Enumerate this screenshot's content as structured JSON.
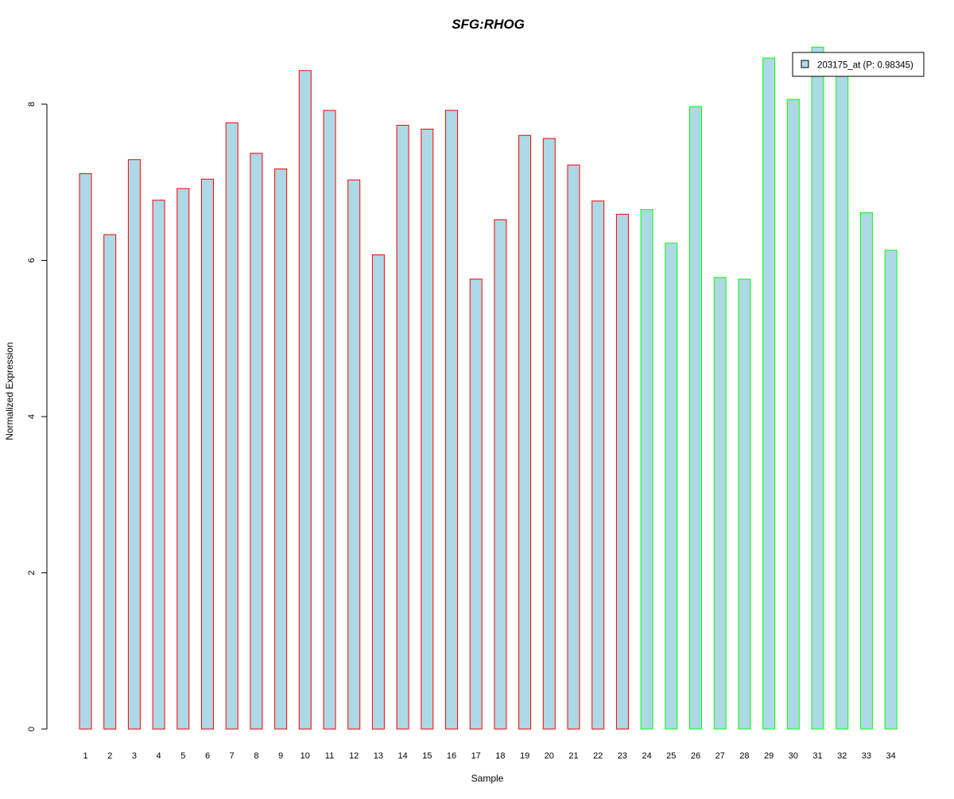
{
  "colors": {
    "bar_fill": "#add8e6",
    "group1_border": "#ff0000",
    "group2_border": "#00ff00",
    "title": "#0000cd",
    "axis": "#000000"
  },
  "chart_data": {
    "type": "bar",
    "title": "SFG:RHOG",
    "xlabel": "Sample",
    "ylabel": "Normalized Expression",
    "ylim": [
      0,
      8.75
    ],
    "yticks": [
      0,
      2,
      4,
      6,
      8
    ],
    "grid": false,
    "legend_position": "top-right",
    "categories": [
      "1",
      "2",
      "3",
      "4",
      "5",
      "6",
      "7",
      "8",
      "9",
      "10",
      "11",
      "12",
      "13",
      "14",
      "15",
      "16",
      "17",
      "18",
      "19",
      "20",
      "21",
      "22",
      "23",
      "24",
      "25",
      "26",
      "27",
      "28",
      "29",
      "30",
      "31",
      "32",
      "33",
      "34"
    ],
    "series": [
      {
        "name": "203175_at (P: 0.98345)",
        "values": [
          7.11,
          6.33,
          7.29,
          6.77,
          6.92,
          7.04,
          7.76,
          7.37,
          7.17,
          8.43,
          7.92,
          7.03,
          6.07,
          7.73,
          7.68,
          7.92,
          5.76,
          6.52,
          7.6,
          7.56,
          7.22,
          6.76,
          6.59,
          6.65,
          6.22,
          7.97,
          5.78,
          5.76,
          8.59,
          8.06,
          8.73,
          8.47,
          6.61,
          6.13
        ],
        "groups": [
          1,
          1,
          1,
          1,
          1,
          1,
          1,
          1,
          1,
          1,
          1,
          1,
          1,
          1,
          1,
          1,
          1,
          1,
          1,
          1,
          1,
          1,
          1,
          2,
          2,
          2,
          2,
          2,
          2,
          2,
          2,
          2,
          2,
          2
        ]
      }
    ]
  }
}
